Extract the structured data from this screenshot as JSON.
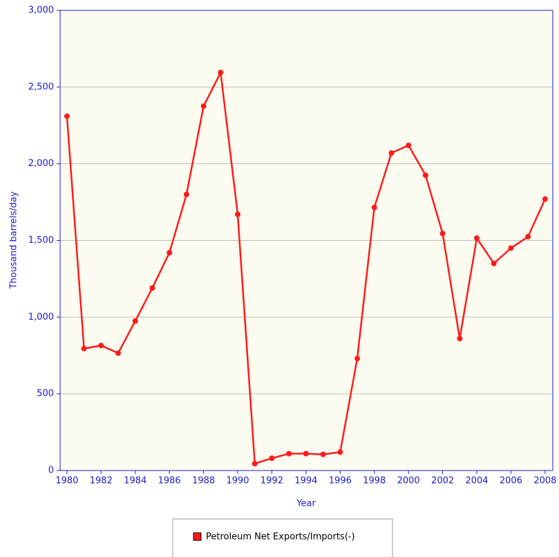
{
  "chart_data": {
    "type": "line",
    "x": [
      1980,
      1981,
      1982,
      1983,
      1984,
      1985,
      1986,
      1987,
      1988,
      1989,
      1990,
      1991,
      1992,
      1993,
      1994,
      1995,
      1996,
      1997,
      1998,
      1999,
      2000,
      2001,
      2002,
      2003,
      2004,
      2005,
      2006,
      2007,
      2008
    ],
    "series": [
      {
        "name": "Petroleum Net Exports/Imports(-)",
        "color": "#ff1a1a",
        "values": [
          2310,
          795,
          815,
          765,
          975,
          1190,
          1420,
          1800,
          2375,
          2595,
          1670,
          45,
          80,
          110,
          110,
          105,
          120,
          730,
          1715,
          2070,
          2120,
          1925,
          1545,
          860,
          1515,
          1350,
          1450,
          1525,
          1770
        ]
      }
    ],
    "xlabel": "Year",
    "ylabel": "Thousand barrels/day",
    "xlim": [
      1979.6,
      2008.45
    ],
    "xticks": [
      1980,
      1982,
      1984,
      1986,
      1988,
      1990,
      1992,
      1994,
      1996,
      1998,
      2000,
      2002,
      2004,
      2006,
      2008
    ],
    "ylim": [
      0,
      3000
    ],
    "yticks": [
      0,
      500,
      {
        "value": 1000,
        "label": "1,000"
      },
      {
        "value": 1500,
        "label": "1,500"
      },
      {
        "value": 2000,
        "label": "2,000"
      },
      {
        "value": 2500,
        "label": "2,500"
      },
      {
        "value": 3000,
        "label": "3,000"
      }
    ],
    "grid": true,
    "legend": "bottom"
  }
}
